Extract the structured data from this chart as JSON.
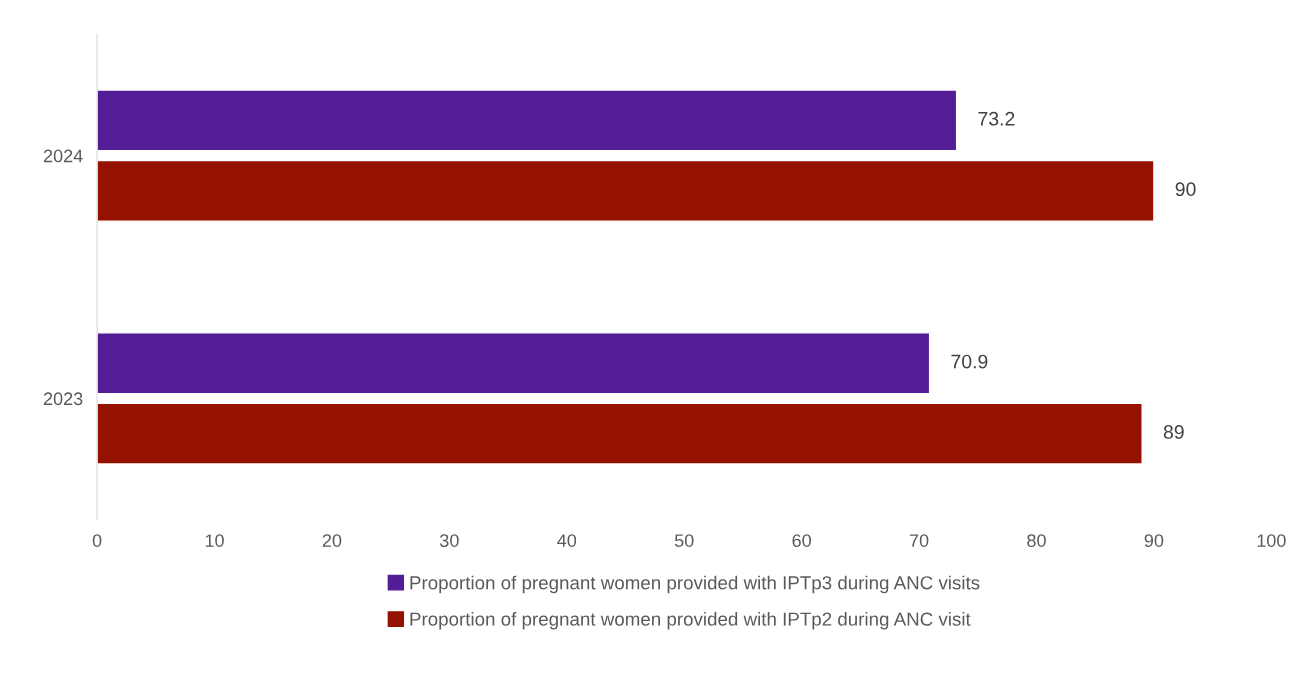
{
  "chart_data": {
    "type": "bar",
    "orientation": "horizontal",
    "categories": [
      "2024",
      "2023"
    ],
    "series": [
      {
        "name": "Proportion of pregnant women provided with IPTp3 during ANC visits",
        "color": "#531d97",
        "values": [
          73.2,
          70.9
        ]
      },
      {
        "name": "Proportion of pregnant women provided with IPTp2 during ANC visit",
        "color": "#961200",
        "values": [
          90,
          89
        ]
      }
    ],
    "xlim": [
      0,
      100
    ],
    "xticks": [
      0,
      10,
      20,
      30,
      40,
      50,
      60,
      70,
      80,
      90,
      100
    ],
    "data_labels": true,
    "legend": "bottom",
    "grid": false
  }
}
